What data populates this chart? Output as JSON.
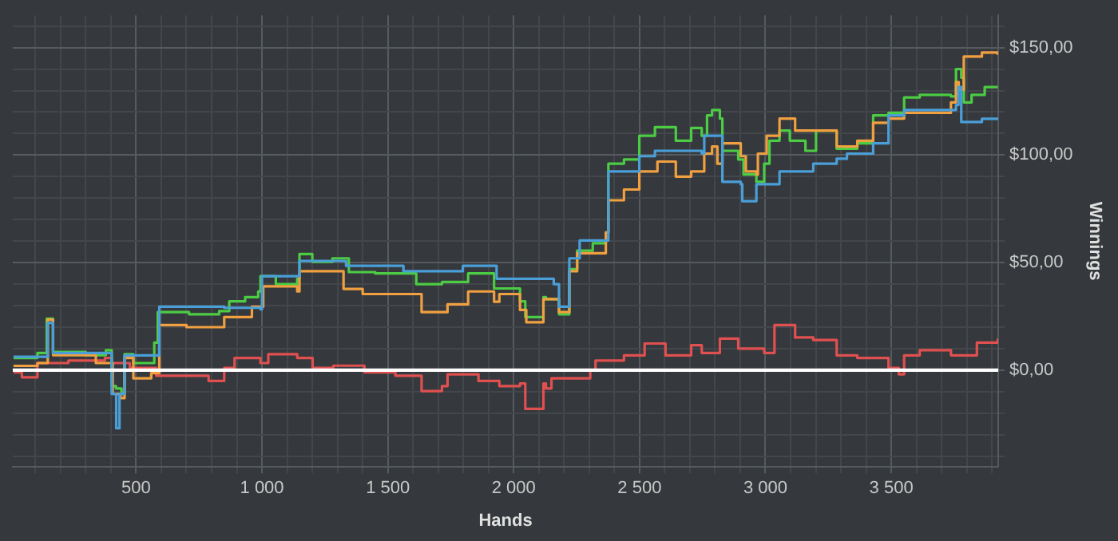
{
  "chart_data": {
    "type": "step",
    "xlabel": "Hands",
    "ylabel": "Winnings",
    "xlim": [
      10,
      3925
    ],
    "ylim": [
      -45,
      165
    ],
    "xticks": [
      {
        "value": 100,
        "label": null
      },
      {
        "value": 200,
        "label": null
      },
      {
        "value": 300,
        "label": null
      },
      {
        "value": 400,
        "label": null
      },
      500,
      {
        "value": 600,
        "label": null
      },
      {
        "value": 700,
        "label": null
      },
      {
        "value": 800,
        "label": null
      },
      {
        "value": 900,
        "label": null
      },
      {
        "value": 1000,
        "label": "1 000"
      },
      {
        "value": 1100,
        "label": null
      },
      {
        "value": 1200,
        "label": null
      },
      {
        "value": 1300,
        "label": null
      },
      {
        "value": 1400,
        "label": null
      },
      {
        "value": 1500,
        "label": "1 500"
      },
      {
        "value": 1600,
        "label": null
      },
      {
        "value": 1700,
        "label": null
      },
      {
        "value": 1800,
        "label": null
      },
      {
        "value": 1900,
        "label": null
      },
      {
        "value": 2000,
        "label": "2 000"
      },
      {
        "value": 2100,
        "label": null
      },
      {
        "value": 2200,
        "label": null
      },
      {
        "value": 2300,
        "label": null
      },
      {
        "value": 2400,
        "label": null
      },
      {
        "value": 2500,
        "label": "2 500"
      },
      {
        "value": 2600,
        "label": null
      },
      {
        "value": 2700,
        "label": null
      },
      {
        "value": 2800,
        "label": null
      },
      {
        "value": 2900,
        "label": null
      },
      {
        "value": 3000,
        "label": "3 000"
      },
      {
        "value": 3100,
        "label": null
      },
      {
        "value": 3200,
        "label": null
      },
      {
        "value": 3300,
        "label": null
      },
      {
        "value": 3400,
        "label": null
      },
      {
        "value": 3500,
        "label": "3 500"
      },
      {
        "value": 3600,
        "label": null
      },
      {
        "value": 3700,
        "label": null
      },
      {
        "value": 3800,
        "label": null
      },
      {
        "value": 3900,
        "label": null
      }
    ],
    "yticks": [
      {
        "value": -40,
        "label": null
      },
      {
        "value": -30,
        "label": null
      },
      {
        "value": -20,
        "label": null
      },
      {
        "value": -10,
        "label": null
      },
      {
        "value": 0,
        "label": "$0,00"
      },
      {
        "value": 10,
        "label": null
      },
      {
        "value": 20,
        "label": null
      },
      {
        "value": 30,
        "label": null
      },
      {
        "value": 40,
        "label": null
      },
      {
        "value": 50,
        "label": "$50,00"
      },
      {
        "value": 60,
        "label": null
      },
      {
        "value": 70,
        "label": null
      },
      {
        "value": 80,
        "label": null
      },
      {
        "value": 90,
        "label": null
      },
      {
        "value": 100,
        "label": "$100,00"
      },
      {
        "value": 110,
        "label": null
      },
      {
        "value": 120,
        "label": null
      },
      {
        "value": 130,
        "label": null
      },
      {
        "value": 140,
        "label": null
      },
      {
        "value": 150,
        "label": "$150,00"
      },
      {
        "value": 160,
        "label": null
      }
    ],
    "grid": true,
    "legend": false,
    "marker": "none",
    "line_style": "solid",
    "ref_lines": [
      {
        "axis": "y",
        "value": 0,
        "color": "#ffffff"
      }
    ],
    "series": [
      {
        "color": "#4a9fd8",
        "x": [
          13,
          108,
          149,
          170,
          403,
          421,
          434,
          454,
          580,
          592,
          850,
          994,
          1000,
          1149,
          1334,
          1562,
          1798,
          1932,
          2128,
          2159,
          2180,
          2221,
          2262,
          2366,
          2376,
          2499,
          2561,
          2747,
          2757,
          2819,
          2829,
          2902,
          2908,
          2964,
          3056,
          3190,
          3283,
          3324,
          3428,
          3489,
          3551,
          3757,
          3767,
          3778,
          3860,
          3923
        ],
        "values": [
          6.2,
          6.2,
          22,
          8,
          -11,
          -27,
          -11,
          6.9,
          6.9,
          29.5,
          29,
          28.3,
          43.7,
          50.8,
          48.5,
          46,
          48.5,
          42.5,
          42.5,
          40,
          29.5,
          52,
          60.3,
          60.3,
          92.4,
          99.5,
          102,
          100.7,
          109,
          109,
          87.6,
          86.5,
          78.6,
          86.5,
          92.4,
          96,
          98.3,
          100.7,
          105.5,
          118.5,
          121,
          123.3,
          131.6,
          115.4,
          116.9,
          117.3
        ]
      },
      {
        "color": "#f0a040",
        "x": [
          13,
          108,
          149,
          170,
          340,
          407,
          438,
          454,
          489,
          560,
          592,
          700,
          850,
          960,
          1005,
          1140,
          1149,
          1324,
          1400,
          1634,
          1737,
          1819,
          1922,
          1943,
          2025,
          2050,
          2098,
          2118,
          2128,
          2180,
          2221,
          2252,
          2366,
          2376,
          2438,
          2499,
          2571,
          2644,
          2705,
          2757,
          2788,
          2809,
          2829,
          2902,
          2922,
          2964,
          2970,
          3005,
          3056,
          3118,
          3190,
          3283,
          3365,
          3428,
          3489,
          3551,
          3737,
          3757,
          3768,
          3788,
          3860,
          3923
        ],
        "values": [
          2,
          3.3,
          23.5,
          7,
          3.3,
          -11,
          -13,
          5.7,
          -3.8,
          -1.4,
          21,
          20,
          24.7,
          29.5,
          39,
          36.6,
          46,
          37.8,
          35.4,
          27,
          30.6,
          36.6,
          31.8,
          35.4,
          28,
          22.3,
          22.3,
          33,
          33,
          27,
          46,
          54.4,
          64,
          79,
          84,
          92.4,
          97,
          90,
          92.4,
          100.7,
          104,
          96,
          105.5,
          99.5,
          92.4,
          91,
          100.7,
          109,
          117,
          111.4,
          111.4,
          104,
          106.7,
          115,
          117,
          119.7,
          124.5,
          134,
          130.4,
          145.8,
          147.7,
          146.6
        ]
      },
      {
        "color": "#4ccc44",
        "x": [
          13,
          108,
          145,
          170,
          300,
          380,
          403,
          420,
          442,
          454,
          489,
          560,
          572,
          586,
          710,
          830,
          870,
          933,
          985,
          994,
          1055,
          1140,
          1149,
          1200,
          1280,
          1345,
          1450,
          1530,
          1613,
          1715,
          1819,
          1922,
          2025,
          2046,
          2090,
          2118,
          2128,
          2180,
          2221,
          2252,
          2314,
          2366,
          2376,
          2438,
          2499,
          2561,
          2644,
          2705,
          2747,
          2768,
          2788,
          2819,
          2829,
          2892,
          2913,
          2964,
          2995,
          3016,
          3056,
          3097,
          3159,
          3201,
          3283,
          3365,
          3428,
          3489,
          3551,
          3613,
          3737,
          3757,
          3778,
          3788,
          3819,
          3871,
          3923
        ],
        "values": [
          5.7,
          8,
          24,
          8.5,
          7,
          9.3,
          -7.4,
          -8.5,
          -11,
          7.4,
          3.3,
          3.3,
          12.8,
          27,
          26,
          27.5,
          32,
          34,
          36.6,
          43.7,
          40,
          42.5,
          54,
          50.4,
          52,
          45.6,
          45,
          45,
          40,
          41,
          45,
          38,
          32,
          24.7,
          24.7,
          34,
          33,
          26,
          47,
          55.6,
          59,
          64,
          96,
          98,
          109,
          113,
          106.7,
          112.6,
          109,
          118.5,
          121,
          117,
          102,
          98,
          91,
          87.6,
          96,
          106.7,
          111.4,
          106.7,
          102,
          111.4,
          103,
          105.5,
          118.5,
          119.7,
          126.8,
          128,
          127.3,
          140,
          136,
          124.5,
          128,
          131.6,
          131.6
        ]
      },
      {
        "color": "#e05050",
        "x": [
          13,
          46,
          108,
          231,
          376,
          403,
          475,
          580,
          788,
          850,
          891,
          994,
          1025,
          1140,
          1201,
          1283,
          1407,
          1530,
          1634,
          1715,
          1737,
          1860,
          1943,
          2025,
          2046,
          2090,
          2118,
          2128,
          2150,
          2230,
          2304,
          2325,
          2438,
          2520,
          2603,
          2705,
          2747,
          2819,
          2892,
          2995,
          3036,
          3118,
          3190,
          3283,
          3365,
          3489,
          3530,
          3551,
          3613,
          3737,
          3840,
          3923
        ],
        "values": [
          -1,
          -3.3,
          3.3,
          4.5,
          5.7,
          3.3,
          1,
          -2.6,
          -5,
          1,
          5.7,
          3.3,
          7.4,
          5.7,
          1,
          2.1,
          -1,
          -2.6,
          -9.7,
          -7.4,
          -1.9,
          -5,
          -7.4,
          -6.2,
          -18,
          -18,
          -6.2,
          -8.5,
          -3.8,
          -3.8,
          -0.2,
          4.5,
          6.9,
          12.4,
          6.9,
          11.6,
          8,
          14.7,
          10,
          8,
          21,
          15.2,
          14,
          6.9,
          5.7,
          1,
          -1.9,
          6.9,
          9.3,
          6.9,
          12.8,
          14.7
        ]
      }
    ]
  }
}
